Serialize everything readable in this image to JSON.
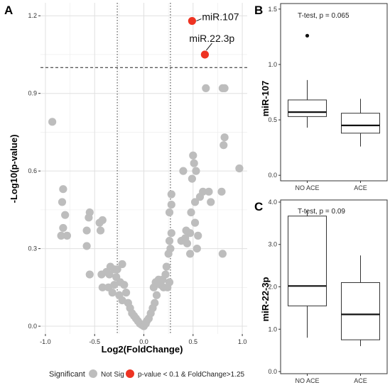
{
  "colors": {
    "not_sig": "#bdbdbd",
    "sig": "#ee3322",
    "panel_bg": "#ffffff",
    "grid": "#ebebeb"
  },
  "panel_labels": {
    "a": "A",
    "b": "B",
    "c": "C"
  },
  "legend": {
    "title": "Significant",
    "items": [
      "Not Sig",
      "p-value < 0.1 & FoldChange>1.25"
    ]
  },
  "chart_data": [
    {
      "type": "scatter",
      "xlabel": "Log2(FoldChange)",
      "ylabel": "-Log10(p-value)",
      "xlim": [
        -1.05,
        1.05
      ],
      "ylim": [
        -0.03,
        1.25
      ],
      "x_ticks": [
        -1.0,
        -0.5,
        0.0,
        0.5,
        1.0
      ],
      "x_tick_labels": [
        "-1.0",
        "-0.5",
        "0.0",
        "0.5",
        "1.0"
      ],
      "y_ticks": [
        0.0,
        0.3,
        0.6,
        0.9,
        1.2
      ],
      "y_tick_labels": [
        "0.0",
        "0.3",
        "0.6",
        "0.9",
        "1.2"
      ],
      "grid": true,
      "hline": 1.0,
      "vlines": [
        -0.27,
        0.27
      ],
      "series": [
        {
          "name": "Not Sig",
          "points": [
            [
              -0.93,
              0.79
            ],
            [
              -0.82,
              0.53
            ],
            [
              -0.83,
              0.48
            ],
            [
              -0.8,
              0.43
            ],
            [
              -0.82,
              0.38
            ],
            [
              -0.84,
              0.35
            ],
            [
              -0.78,
              0.35
            ],
            [
              -0.55,
              0.44
            ],
            [
              -0.56,
              0.42
            ],
            [
              -0.45,
              0.4
            ],
            [
              -0.42,
              0.41
            ],
            [
              -0.58,
              0.37
            ],
            [
              -0.44,
              0.37
            ],
            [
              -0.58,
              0.31
            ],
            [
              -0.55,
              0.2
            ],
            [
              -0.43,
              0.2
            ],
            [
              -0.38,
              0.21
            ],
            [
              -0.34,
              0.23
            ],
            [
              -0.3,
              0.22
            ],
            [
              -0.27,
              0.22
            ],
            [
              -0.22,
              0.24
            ],
            [
              -0.35,
              0.2
            ],
            [
              -0.28,
              0.19
            ],
            [
              -0.42,
              0.15
            ],
            [
              -0.36,
              0.15
            ],
            [
              -0.3,
              0.16
            ],
            [
              -0.24,
              0.17
            ],
            [
              -0.2,
              0.16
            ],
            [
              -0.32,
              0.13
            ],
            [
              -0.25,
              0.12
            ],
            [
              -0.18,
              0.13
            ],
            [
              -0.22,
              0.1
            ],
            [
              -0.16,
              0.09
            ],
            [
              -0.14,
              0.07
            ],
            [
              -0.12,
              0.05
            ],
            [
              -0.1,
              0.04
            ],
            [
              -0.08,
              0.03
            ],
            [
              -0.06,
              0.02
            ],
            [
              -0.04,
              0.01
            ],
            [
              -0.02,
              0.005
            ],
            [
              0.0,
              0.0
            ],
            [
              0.02,
              0.01
            ],
            [
              0.03,
              0.02
            ],
            [
              0.05,
              0.03
            ],
            [
              0.07,
              0.05
            ],
            [
              0.09,
              0.07
            ],
            [
              0.11,
              0.09
            ],
            [
              0.13,
              0.12
            ],
            [
              0.1,
              0.15
            ],
            [
              0.12,
              0.17
            ],
            [
              0.15,
              0.18
            ],
            [
              0.17,
              0.16
            ],
            [
              0.19,
              0.18
            ],
            [
              0.22,
              0.2
            ],
            [
              0.2,
              0.15
            ],
            [
              0.24,
              0.15
            ],
            [
              0.26,
              0.17
            ],
            [
              0.23,
              0.23
            ],
            [
              0.25,
              0.28
            ],
            [
              0.27,
              0.3
            ],
            [
              0.26,
              0.33
            ],
            [
              0.28,
              0.36
            ],
            [
              0.26,
              0.44
            ],
            [
              0.28,
              0.47
            ],
            [
              0.28,
              0.51
            ],
            [
              0.38,
              0.33
            ],
            [
              0.42,
              0.34
            ],
            [
              0.47,
              0.36
            ],
            [
              0.43,
              0.37
            ],
            [
              0.44,
              0.32
            ],
            [
              0.4,
              0.6
            ],
            [
              0.49,
              0.57
            ],
            [
              0.52,
              0.48
            ],
            [
              0.48,
              0.44
            ],
            [
              0.52,
              0.4
            ],
            [
              0.55,
              0.35
            ],
            [
              0.57,
              0.5
            ],
            [
              0.47,
              0.28
            ],
            [
              0.54,
              0.3
            ],
            [
              0.5,
              0.66
            ],
            [
              0.51,
              0.63
            ],
            [
              0.53,
              0.6
            ],
            [
              0.6,
              0.52
            ],
            [
              0.66,
              0.52
            ],
            [
              0.68,
              0.48
            ],
            [
              0.79,
              0.52
            ],
            [
              0.8,
              0.28
            ],
            [
              0.82,
              0.73
            ],
            [
              0.81,
              0.7
            ],
            [
              0.97,
              0.61
            ],
            [
              0.63,
              0.92
            ],
            [
              0.8,
              0.92
            ],
            [
              0.82,
              0.92
            ]
          ]
        },
        {
          "name": "p-value < 0.1 & FoldChange>1.25",
          "points": [
            [
              0.49,
              1.18
            ],
            [
              0.62,
              1.05
            ]
          ]
        }
      ],
      "annotations": [
        {
          "label": "miR.107",
          "x": 0.49,
          "y": 1.18
        },
        {
          "label": "miR.22.3p",
          "x": 0.62,
          "y": 1.05
        }
      ]
    },
    {
      "type": "box",
      "ylabel": "miR-107",
      "subtitle": "T-test, p = 0.065",
      "categories": [
        "NO ACE",
        "ACE"
      ],
      "ylim": [
        -0.05,
        1.55
      ],
      "y_ticks": [
        0.0,
        0.5,
        1.0,
        1.5
      ],
      "y_tick_labels": [
        "0.0",
        "0.5",
        "1.0",
        "1.5"
      ],
      "boxes": [
        {
          "category": "NO ACE",
          "whisker_low": 0.43,
          "q1": 0.53,
          "median": 0.57,
          "q3": 0.68,
          "whisker_high": 0.86,
          "outliers": [
            1.26
          ]
        },
        {
          "category": "ACE",
          "whisker_low": 0.26,
          "q1": 0.38,
          "median": 0.45,
          "q3": 0.56,
          "whisker_high": 0.69,
          "outliers": []
        }
      ]
    },
    {
      "type": "box",
      "ylabel": "miR-22-3p",
      "subtitle": "T-test, p = 0.09",
      "categories": [
        "NO ACE",
        "ACE"
      ],
      "ylim": [
        -0.05,
        4.05
      ],
      "y_ticks": [
        0.0,
        1.0,
        2.0,
        3.0,
        4.0
      ],
      "y_tick_labels": [
        "0.0",
        "1.0",
        "2.0",
        "3.0",
        "4.0"
      ],
      "boxes": [
        {
          "category": "NO ACE",
          "whisker_low": 0.8,
          "q1": 1.55,
          "median": 2.02,
          "q3": 3.67,
          "whisker_high": 3.8,
          "outliers": []
        },
        {
          "category": "ACE",
          "whisker_low": 0.6,
          "q1": 0.75,
          "median": 1.35,
          "q3": 2.1,
          "whisker_high": 2.74,
          "outliers": []
        }
      ]
    }
  ]
}
